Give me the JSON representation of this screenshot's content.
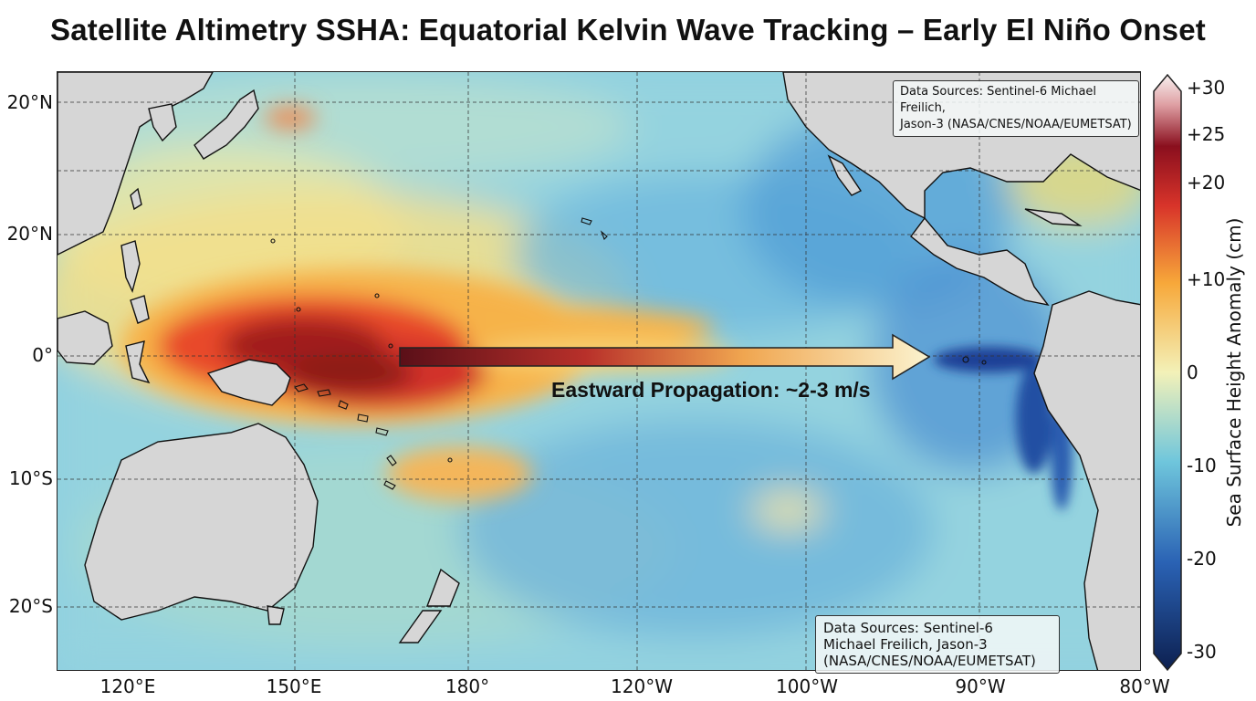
{
  "title": "Satellite Altimetry SSHA: Equatorial Kelvin Wave Tracking – Early El Niño Onset",
  "map": {
    "lat_labels": [
      "20°N",
      "20°N",
      "0°",
      "10°S",
      "20°S"
    ],
    "lon_labels": [
      "120°E",
      "150°E",
      "180°",
      "120°W",
      "100°W",
      "90°W",
      "80°W"
    ],
    "annotation": "Eastward Propagation: ~2-3 m/s",
    "source_top": {
      "line1": "Data Sources: Sentinel-6 Michael Freilich,",
      "line2": "Jason-3 (NASA/CNES/NOAA/EUMETSAT)"
    },
    "source_bottom": {
      "line1": "Data Sources: Sentinel-6",
      "line2": "Michael Freilich, Jason-3",
      "line3": "(NASA/CNES/NOAA/EUMETSAT)"
    }
  },
  "colorbar": {
    "label": "Sea Surface Height Anomaly (cm)",
    "ticks": [
      "+30",
      "+25",
      "+20",
      "+10",
      "0",
      "-10",
      "-20",
      "-30"
    ],
    "range": [
      -30,
      30
    ],
    "colors": {
      "max": "#f6eceb",
      "high": "#8a0f1e",
      "warm": "#e8402a",
      "mid_warm": "#f7a83a",
      "neutral": "#f3f1b8",
      "cool": "#6fc6dc",
      "cold": "#2a62b4",
      "min": "#0d2050"
    }
  },
  "colors": {
    "land": "#d6d6d6",
    "ocean_base": "#86cde0",
    "anomaly_core": "#7a1a14",
    "cold_tongue": "#1e4fa8"
  }
}
